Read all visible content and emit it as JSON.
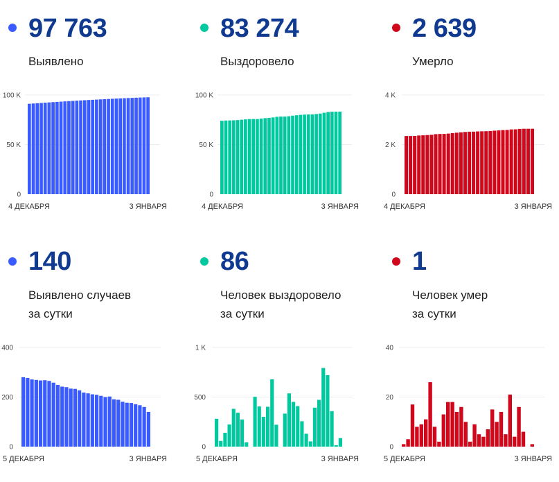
{
  "colors": {
    "cases": "#3a5bff",
    "recovered": "#00c9a0",
    "deaths": "#d0081c",
    "number": "#0f3a8f"
  },
  "panels": [
    {
      "key": "cases",
      "value": "97 763",
      "label_lines": [
        "Выявлено"
      ]
    },
    {
      "key": "recovered",
      "value": "83 274",
      "label_lines": [
        "Выздоровело"
      ]
    },
    {
      "key": "deaths",
      "value": "2 639",
      "label_lines": [
        "Умерло"
      ]
    },
    {
      "key": "cases",
      "value": "140",
      "label_lines": [
        "Выявлено случаев",
        "за сутки"
      ]
    },
    {
      "key": "recovered",
      "value": "86",
      "label_lines": [
        "Человек выздоровело",
        "за сутки"
      ]
    },
    {
      "key": "deaths",
      "value": "1",
      "label_lines": [
        "Человек умер",
        "за сутки"
      ]
    }
  ],
  "chart_data": [
    {
      "type": "bar",
      "title": "Выявлено",
      "series_color_key": "cases",
      "x_start_label": "4 ДЕКАБРЯ",
      "x_end_label": "3 ЯНВАРЯ",
      "ylim": [
        0,
        100000
      ],
      "yticks": [
        0,
        50000,
        100000
      ],
      "ytick_labels": [
        "0",
        "50 K",
        "100 K"
      ],
      "values": [
        91171,
        91451,
        91728,
        91999,
        92268,
        92535,
        92803,
        93068,
        93326,
        93575,
        93817,
        94057,
        94291,
        94524,
        94751,
        94969,
        95184,
        95395,
        95604,
        95809,
        96009,
        96211,
        96402,
        96591,
        96772,
        96949,
        97125,
        97296,
        97463,
        97623,
        97763
      ]
    },
    {
      "type": "bar",
      "title": "Выздоровело",
      "series_color_key": "recovered",
      "x_start_label": "4 ДЕКАБРЯ",
      "x_end_label": "3 ЯНВАРЯ",
      "ylim": [
        0,
        100000
      ],
      "yticks": [
        0,
        50000,
        100000
      ],
      "ytick_labels": [
        "0",
        "50 K",
        "100 K"
      ],
      "values": [
        74016,
        74297,
        74355,
        74495,
        74718,
        75099,
        75441,
        75715,
        75759,
        75759,
        76261,
        76666,
        76966,
        77368,
        78047,
        78268,
        78268,
        78601,
        79138,
        79589,
        79998,
        80254,
        80384,
        80437,
        80830,
        81302,
        82095,
        82816,
        83174,
        83188,
        83274
      ]
    },
    {
      "type": "bar",
      "title": "Умерло",
      "series_color_key": "deaths",
      "x_start_label": "4 ДЕКАБРЯ",
      "x_end_label": "3 ЯНВАРЯ",
      "ylim": [
        0,
        4000
      ],
      "yticks": [
        0,
        2000,
        4000
      ],
      "ytick_labels": [
        "0",
        "2 K",
        "4 K"
      ],
      "values": [
        2346,
        2347,
        2350,
        2367,
        2375,
        2384,
        2395,
        2421,
        2429,
        2431,
        2444,
        2462,
        2480,
        2494,
        2510,
        2520,
        2522,
        2531,
        2536,
        2540,
        2547,
        2562,
        2572,
        2586,
        2591,
        2612,
        2616,
        2632,
        2638,
        2638,
        2639
      ]
    },
    {
      "type": "bar",
      "title": "Выявлено случаев за сутки",
      "series_color_key": "cases",
      "x_start_label": "5 ДЕКАБРЯ",
      "x_end_label": "3 ЯНВАРЯ",
      "ylim": [
        0,
        400
      ],
      "yticks": [
        0,
        200,
        400
      ],
      "ytick_labels": [
        "0",
        "200",
        "400"
      ],
      "values": [
        280,
        277,
        271,
        269,
        267,
        268,
        265,
        258,
        249,
        242,
        240,
        234,
        233,
        227,
        218,
        215,
        211,
        209,
        205,
        200,
        202,
        191,
        189,
        181,
        177,
        176,
        171,
        167,
        160,
        140
      ]
    },
    {
      "type": "bar",
      "title": "Человек выздоровело за сутки",
      "series_color_key": "recovered",
      "x_start_label": "5 ДЕКАБРЯ",
      "x_end_label": "3 ЯНВАРЯ",
      "ylim": [
        0,
        1000
      ],
      "yticks": [
        0,
        500,
        1000
      ],
      "ytick_labels": [
        "0",
        "500",
        "1 K"
      ],
      "values": [
        281,
        58,
        140,
        223,
        381,
        342,
        274,
        44,
        0,
        502,
        405,
        300,
        402,
        679,
        221,
        0,
        333,
        537,
        451,
        409,
        256,
        130,
        53,
        393,
        472,
        793,
        721,
        358,
        14,
        86
      ]
    },
    {
      "type": "bar",
      "title": "Человек умер за сутки",
      "series_color_key": "deaths",
      "x_start_label": "5 ДЕКАБРЯ",
      "x_end_label": "3 ЯНВАРЯ",
      "ylim": [
        0,
        40
      ],
      "yticks": [
        0,
        20,
        40
      ],
      "ytick_labels": [
        "0",
        "20",
        "40"
      ],
      "values": [
        1,
        3,
        17,
        8,
        9,
        11,
        26,
        8,
        2,
        13,
        18,
        18,
        14,
        16,
        10,
        2,
        9,
        5,
        4,
        7,
        15,
        10,
        14,
        5,
        21,
        4,
        16,
        6,
        0,
        1
      ]
    }
  ]
}
